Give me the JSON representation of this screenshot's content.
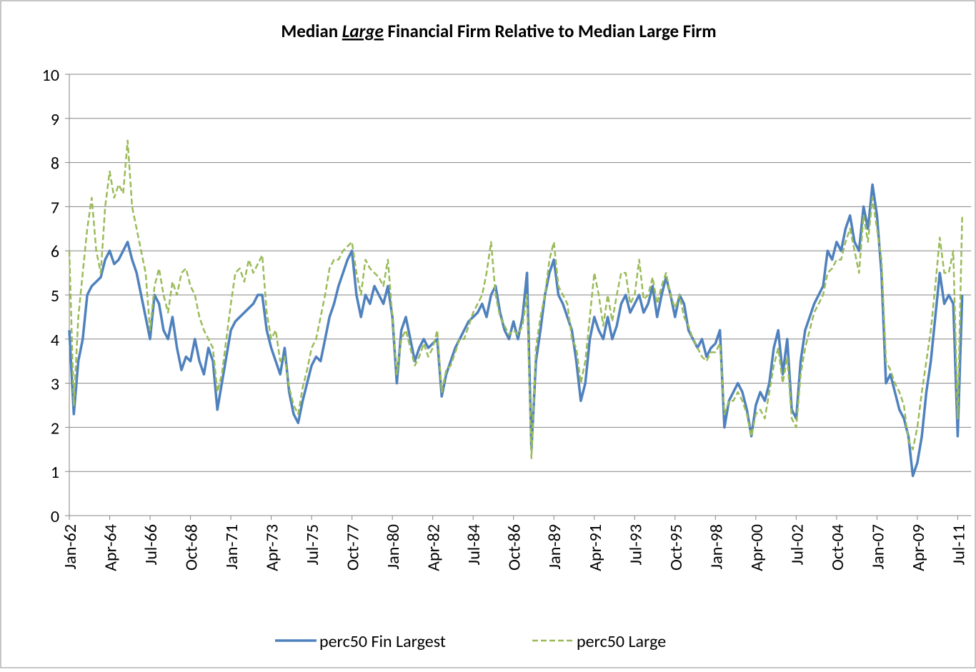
{
  "chart_data": {
    "type": "line",
    "title": {
      "before": "Median",
      "emphasis": "Large",
      "after": "Financial Firm Relative to Median Large Firm"
    },
    "categories": [
      "Jan-62",
      null,
      null,
      null,
      null,
      null,
      null,
      null,
      null,
      "Apr-64",
      null,
      null,
      null,
      null,
      null,
      null,
      null,
      null,
      "Jul-66",
      null,
      null,
      null,
      null,
      null,
      null,
      null,
      null,
      "Oct-68",
      null,
      null,
      null,
      null,
      null,
      null,
      null,
      null,
      "Jan-71",
      null,
      null,
      null,
      null,
      null,
      null,
      null,
      null,
      "Apr-73",
      null,
      null,
      null,
      null,
      null,
      null,
      null,
      null,
      "Jul-75",
      null,
      null,
      null,
      null,
      null,
      null,
      null,
      null,
      "Oct-77",
      null,
      null,
      null,
      null,
      null,
      null,
      null,
      null,
      "Jan-80",
      null,
      null,
      null,
      null,
      null,
      null,
      null,
      null,
      "Apr-82",
      null,
      null,
      null,
      null,
      null,
      null,
      null,
      null,
      "Jul-84",
      null,
      null,
      null,
      null,
      null,
      null,
      null,
      null,
      "Oct-86",
      null,
      null,
      null,
      null,
      null,
      null,
      null,
      null,
      "Jan-89",
      null,
      null,
      null,
      null,
      null,
      null,
      null,
      null,
      "Apr-91",
      null,
      null,
      null,
      null,
      null,
      null,
      null,
      null,
      "Jul-93",
      null,
      null,
      null,
      null,
      null,
      null,
      null,
      null,
      "Oct-95",
      null,
      null,
      null,
      null,
      null,
      null,
      null,
      null,
      "Jan-98",
      null,
      null,
      null,
      null,
      null,
      null,
      null,
      null,
      "Apr-00",
      null,
      null,
      null,
      null,
      null,
      null,
      null,
      null,
      "Jul-02",
      null,
      null,
      null,
      null,
      null,
      null,
      null,
      null,
      "Oct-04",
      null,
      null,
      null,
      null,
      null,
      null,
      null,
      null,
      "Jan-07",
      null,
      null,
      null,
      null,
      null,
      null,
      null,
      null,
      "Apr-09",
      null,
      null,
      null,
      null,
      null,
      null,
      null,
      null,
      "Jul-11",
      null
    ],
    "series": [
      {
        "name": "perc50 Fin Largest",
        "color": "#4f81bd",
        "dash": false,
        "values": [
          4.2,
          2.3,
          3.5,
          4.0,
          5.0,
          5.2,
          5.3,
          5.4,
          5.8,
          6.0,
          5.7,
          5.8,
          6.0,
          6.2,
          5.8,
          5.5,
          5.0,
          4.5,
          4.0,
          5.0,
          4.8,
          4.2,
          4.0,
          4.5,
          3.8,
          3.3,
          3.6,
          3.5,
          4.0,
          3.5,
          3.2,
          3.8,
          3.5,
          2.4,
          3.0,
          3.6,
          4.2,
          4.4,
          4.5,
          4.6,
          4.7,
          4.8,
          5.0,
          5.0,
          4.2,
          3.8,
          3.5,
          3.2,
          3.8,
          2.8,
          2.3,
          2.1,
          2.6,
          3.0,
          3.4,
          3.6,
          3.5,
          4.0,
          4.5,
          4.8,
          5.2,
          5.5,
          5.8,
          6.0,
          5.0,
          4.5,
          5.0,
          4.8,
          5.2,
          5.0,
          4.8,
          5.2,
          4.5,
          3.0,
          4.2,
          4.5,
          4.0,
          3.5,
          3.8,
          4.0,
          3.8,
          3.9,
          4.0,
          2.7,
          3.2,
          3.5,
          3.8,
          4.0,
          4.2,
          4.4,
          4.5,
          4.6,
          4.8,
          4.5,
          5.0,
          5.2,
          4.6,
          4.2,
          4.0,
          4.4,
          4.0,
          4.5,
          5.5,
          1.5,
          3.5,
          4.2,
          5.0,
          5.5,
          5.8,
          5.0,
          4.8,
          4.5,
          4.2,
          3.5,
          2.6,
          3.0,
          4.0,
          4.5,
          4.2,
          4.0,
          4.5,
          4.0,
          4.3,
          4.8,
          5.0,
          4.6,
          4.8,
          5.0,
          4.6,
          4.8,
          5.2,
          4.5,
          5.0,
          5.4,
          5.0,
          4.5,
          5.0,
          4.8,
          4.2,
          4.0,
          3.8,
          4.0,
          3.6,
          3.8,
          3.9,
          4.2,
          2.0,
          2.6,
          2.8,
          3.0,
          2.8,
          2.4,
          1.8,
          2.5,
          2.8,
          2.6,
          3.0,
          3.8,
          4.2,
          3.2,
          4.0,
          2.4,
          2.2,
          3.5,
          4.2,
          4.5,
          4.8,
          5.0,
          5.2,
          6.0,
          5.8,
          6.2,
          6.0,
          6.5,
          6.8,
          6.2,
          6.0,
          7.0,
          6.5,
          7.5,
          6.8,
          5.5,
          3.0,
          3.2,
          2.8,
          2.4,
          2.2,
          1.8,
          0.9,
          1.2,
          1.8,
          2.8,
          3.5,
          4.5,
          5.5,
          4.8,
          5.0,
          4.8,
          1.8,
          5.0
        ]
      },
      {
        "name": "perc50 Large",
        "color": "#9bbb59",
        "dash": true,
        "values": [
          6.0,
          2.5,
          4.5,
          5.5,
          6.5,
          7.2,
          6.0,
          5.5,
          7.0,
          7.8,
          7.2,
          7.5,
          7.3,
          8.5,
          7.0,
          6.5,
          6.0,
          5.5,
          4.2,
          5.2,
          5.6,
          5.0,
          4.6,
          5.3,
          5.0,
          5.5,
          5.6,
          5.2,
          5.0,
          4.5,
          4.2,
          4.0,
          3.8,
          2.8,
          3.2,
          4.0,
          4.8,
          5.5,
          5.6,
          5.3,
          5.8,
          5.5,
          5.7,
          5.9,
          4.6,
          4.0,
          4.2,
          3.5,
          3.6,
          2.9,
          2.5,
          2.3,
          2.9,
          3.3,
          3.8,
          4.0,
          4.5,
          5.0,
          5.6,
          5.8,
          5.8,
          6.0,
          6.1,
          6.2,
          5.5,
          5.0,
          5.8,
          5.6,
          5.5,
          5.4,
          5.2,
          5.8,
          4.5,
          3.2,
          4.0,
          4.2,
          3.8,
          3.4,
          3.6,
          3.9,
          3.6,
          3.8,
          4.2,
          2.8,
          3.3,
          3.4,
          3.7,
          4.0,
          4.0,
          4.3,
          4.6,
          4.8,
          5.0,
          5.5,
          6.2,
          5.0,
          4.5,
          4.3,
          4.1,
          4.2,
          4.1,
          4.3,
          5.0,
          1.3,
          3.8,
          4.5,
          5.0,
          5.8,
          6.2,
          5.2,
          5.0,
          4.8,
          4.0,
          3.8,
          3.0,
          3.5,
          4.5,
          5.5,
          5.0,
          4.3,
          5.0,
          4.4,
          5.0,
          5.5,
          5.5,
          4.8,
          5.0,
          5.8,
          4.9,
          5.0,
          5.4,
          4.8,
          5.2,
          5.5,
          5.0,
          4.7,
          5.0,
          4.5,
          4.3,
          4.0,
          3.8,
          3.6,
          3.5,
          3.7,
          3.7,
          3.9,
          2.3,
          2.6,
          2.6,
          2.8,
          2.6,
          2.3,
          1.8,
          2.3,
          2.4,
          2.2,
          2.8,
          3.4,
          3.8,
          3.0,
          3.6,
          2.2,
          2.0,
          3.2,
          3.8,
          4.2,
          4.6,
          4.8,
          5.0,
          5.5,
          5.6,
          5.8,
          5.8,
          6.2,
          6.5,
          6.0,
          5.5,
          6.8,
          6.2,
          7.2,
          6.5,
          5.8,
          3.5,
          3.3,
          3.0,
          2.8,
          2.5,
          1.7,
          1.5,
          2.0,
          2.8,
          3.5,
          4.2,
          5.2,
          6.3,
          5.5,
          5.5,
          6.0,
          2.2,
          6.8
        ]
      }
    ],
    "ylim": [
      0,
      10
    ],
    "yticks": [
      0,
      1,
      2,
      3,
      4,
      5,
      6,
      7,
      8,
      9,
      10
    ],
    "grid": true,
    "legend": "bottom"
  }
}
